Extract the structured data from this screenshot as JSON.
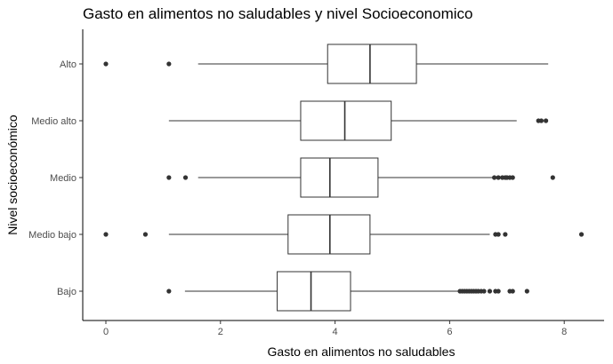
{
  "chart_data": {
    "type": "boxplot",
    "title": "Gasto en alimentos no saludables y nivel Socioeconomico",
    "xlabel": "Gasto en alimentos no saludables",
    "ylabel": "Nivel socioeconómico",
    "orientation": "horizontal",
    "xlim": [
      -0.4,
      8.6
    ],
    "xticks": [
      0,
      2,
      4,
      6,
      8
    ],
    "grid": false,
    "categories": [
      "Bajo",
      "Medio bajo",
      "Medio",
      "Medio alto",
      "Alto"
    ],
    "boxes": [
      {
        "category": "Bajo",
        "whisker_low": 1.38,
        "q1": 2.99,
        "median": 3.58,
        "q3": 4.27,
        "whisker_high": 6.16,
        "outliers": [
          1.1,
          6.18,
          6.22,
          6.26,
          6.3,
          6.34,
          6.38,
          6.42,
          6.46,
          6.5,
          6.55,
          6.6,
          6.7,
          6.8,
          6.85,
          7.05,
          7.1,
          7.35
        ]
      },
      {
        "category": "Medio bajo",
        "whisker_low": 1.1,
        "q1": 3.18,
        "median": 3.91,
        "q3": 4.61,
        "whisker_high": 6.7,
        "outliers": [
          0.0,
          0.69,
          6.8,
          6.85,
          6.97,
          8.3
        ]
      },
      {
        "category": "Medio",
        "whisker_low": 1.61,
        "q1": 3.4,
        "median": 3.91,
        "q3": 4.75,
        "whisker_high": 6.75,
        "outliers": [
          1.1,
          1.39,
          6.78,
          6.85,
          6.92,
          6.97,
          7.0,
          7.05,
          7.1,
          7.8
        ]
      },
      {
        "category": "Medio alto",
        "whisker_low": 1.1,
        "q1": 3.4,
        "median": 4.17,
        "q3": 4.98,
        "whisker_high": 7.17,
        "outliers": [
          7.55,
          7.6,
          7.68
        ]
      },
      {
        "category": "Alto",
        "whisker_low": 1.61,
        "q1": 3.87,
        "median": 4.61,
        "q3": 5.42,
        "whisker_high": 7.72,
        "outliers": [
          0.0,
          1.1
        ]
      }
    ]
  }
}
